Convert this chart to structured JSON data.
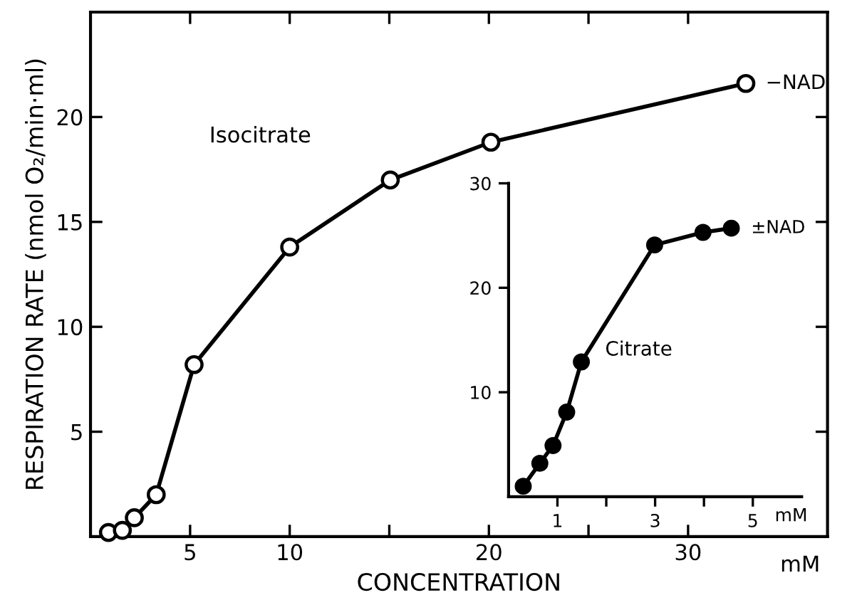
{
  "chart_data": [
    {
      "type": "line",
      "xlabel": "CONCENTRATION",
      "ylabel": "RESPIRATION RATE (nmol O₂/min·ml)",
      "marker": "circle",
      "line_style": "solid",
      "grid": false,
      "legend": false,
      "xlim": [
        0,
        37
      ],
      "ylim": [
        0,
        25
      ],
      "xticks": [
        5,
        10,
        {
          "value": 15,
          "label": null
        },
        20,
        {
          "value": 25,
          "label": null
        },
        30
      ],
      "yticks": [
        5,
        10,
        15,
        20
      ],
      "series": [
        {
          "name": "Isocitrate",
          "color": "#000000",
          "x": [
            0.9,
            1.6,
            2.2,
            3.3,
            5.2,
            10,
            15.05,
            20.1,
            32.9
          ],
          "values": [
            0.2,
            0.3,
            0.9,
            2.0,
            8.2,
            13.8,
            17.0,
            18.8,
            21.6
          ]
        }
      ],
      "annotations": [
        {
          "text": "−NAD",
          "x": 32.9,
          "y": 21.6
        },
        "mM"
      ]
    },
    {
      "type": "line",
      "marker": "circle",
      "line_style": "solid",
      "grid": false,
      "legend": false,
      "xlim": [
        0,
        6
      ],
      "ylim": [
        0,
        30
      ],
      "xticks": [
        1,
        {
          "value": 2,
          "label": null
        },
        3,
        {
          "value": 4,
          "label": null
        },
        5
      ],
      "yticks": [
        10,
        20,
        30
      ],
      "series": [
        {
          "name": "Citrate",
          "color": "#000000",
          "x": [
            0.3,
            0.64,
            0.91,
            1.19,
            1.49,
            2.99,
            3.98,
            4.56
          ],
          "values": [
            1.0,
            3.2,
            4.9,
            8.1,
            12.9,
            24.1,
            25.3,
            25.7
          ]
        }
      ],
      "annotations": [
        {
          "text": "±NAD",
          "x": 4.56,
          "y": 25.7
        },
        "mM"
      ]
    }
  ]
}
